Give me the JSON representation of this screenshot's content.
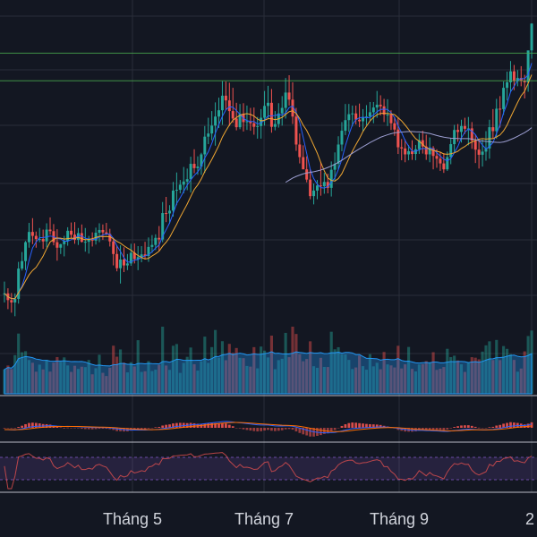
{
  "chart_data": {
    "type": "candlestick",
    "x_ticks": [
      "Tháng 5",
      "Tháng 7",
      "Tháng 9",
      "2"
    ],
    "colors": {
      "background": "#131722",
      "grid": "#2a2e39",
      "up": "#26a69a",
      "down": "#ef5350",
      "ma_fast": "#2962ff",
      "ma_mid": "#f0a732",
      "ma_slow": "#9c9ed1",
      "volume_ma": "#2196f3",
      "macd_line": "#2962ff",
      "signal_line": "#ff6d00",
      "rsi_line": "#7e57c2",
      "rsi_band": "#7e57c2",
      "separator": "#d1d4dc",
      "hline": "#4caf50"
    },
    "price_range": [
      0,
      100
    ],
    "horizontal_levels": [
      86.5,
      79.5
    ],
    "candles": {
      "open": [
        25.5,
        25.5,
        23.8,
        23.2,
        24.1,
        31.8,
        33.7,
        38.5,
        41.1,
        40.1,
        39.3,
        39.3,
        38.7,
        41.7,
        41.3,
        38.5,
        37.1,
        38.0,
        38.8,
        41.4,
        40.4,
        39.1,
        40.8,
        38.6,
        38.6,
        39.3,
        38.9,
        40.9,
        41.6,
        41.0,
        40.6,
        38.7,
        35.5,
        31.9,
        34.1,
        32.6,
        33.1,
        35.8,
        34.2,
        34.7,
        35.4,
        35.0,
        37.3,
        37.8,
        39.6,
        39.2,
        45.9,
        45.8,
        46.5,
        51.6,
        51.8,
        53.1,
        53.9,
        54.5,
        58.4,
        57.3,
        57.7,
        60.8,
        65.3,
        66.1,
        68.1,
        70.4,
        72.0,
        75.7,
        74.5,
        71.8,
        69.9,
        67.7,
        71.1,
        69.0,
        69.2,
        68.7,
        67.8,
        68.0,
        70.1,
        73.1,
        73.9,
        67.8,
        68.5,
        71.2,
        72.6,
        76.5,
        74.7,
        70.4,
        63.3,
        60.1,
        57.0,
        54.4,
        50.2,
        51.6,
        52.9,
        52.7,
        53.8,
        52.3,
        56.9,
        58.4,
        63.3,
        66.8,
        69.5,
        71.0,
        71.2,
        69.6,
        69.2,
        70.2,
        70.4,
        71.5,
        72.7,
        73.4,
        73.0,
        70.9,
        70.9,
        68.7,
        67.1,
        62.6,
        62.3,
        60.8,
        61.6,
        60.9,
        62.1,
        64.4,
        62.8,
        60.8,
        62.4,
        60.4,
        59.7,
        58.5,
        57.0,
        60.1,
        63.4,
        67.0,
        66.5,
        68.0,
        67.3,
        67.4,
        64.3,
        62.0,
        60.7,
        61.5,
        62.3,
        67.7,
        66.7,
        72.4,
        72.3,
        77.7,
        79.1,
        81.9,
        79.4,
        80.2,
        79.5,
        79.1,
        87.2
      ],
      "high": [
        28.5,
        26.8,
        25.6,
        25.5,
        33.5,
        36.0,
        38.8,
        43.4,
        44.6,
        41.2,
        42.1,
        41.7,
        43.3,
        44.8,
        43.1,
        41.8,
        38.1,
        40.1,
        42.3,
        43.5,
        43.6,
        42.1,
        43.0,
        42.1,
        40.1,
        41.0,
        42.2,
        43.3,
        43.0,
        43.4,
        41.9,
        39.6,
        37.7,
        37.7,
        37.2,
        35.5,
        38.1,
        38.2,
        37.5,
        37.5,
        38.6,
        39.7,
        40.3,
        40.5,
        42.6,
        48.7,
        50.0,
        47.9,
        53.8,
        56.2,
        54.3,
        57.6,
        57.2,
        60.2,
        62.1,
        60.3,
        61.2,
        68.0,
        70.1,
        71.8,
        74.0,
        75.2,
        79.4,
        79.3,
        79.0,
        77.7,
        73.9,
        73.6,
        73.8,
        73.2,
        72.6,
        72.7,
        70.3,
        72.3,
        76.9,
        78.2,
        77.4,
        71.8,
        73.8,
        75.6,
        80.2,
        80.9,
        79.1,
        72.6,
        66.1,
        63.1,
        60.3,
        57.0,
        53.4,
        54.3,
        58.9,
        56.1,
        55.9,
        59.0,
        61.3,
        65.4,
        69.0,
        73.6,
        73.6,
        73.2,
        73.2,
        73.7,
        72.3,
        73.3,
        74.1,
        74.1,
        76.9,
        75.8,
        74.9,
        74.8,
        72.0,
        70.3,
        70.1,
        64.7,
        64.6,
        63.2,
        64.4,
        63.2,
        66.1,
        66.8,
        65.8,
        65.1,
        62.9,
        62.1,
        61.3,
        61.1,
        61.5,
        65.0,
        68.3,
        68.5,
        69.6,
        70.1,
        70.3,
        69.0,
        65.8,
        64.6,
        64.6,
        66.7,
        69.6,
        72.3,
        74.9,
        75.6,
        79.3,
        81.8,
        84.5,
        83.5,
        82.2,
        83.2,
        81.0,
        86.3,
        94.1
      ],
      "low": [
        23.2,
        21.5,
        20.6,
        19.7,
        22.9,
        31.3,
        31.4,
        37.1,
        38.0,
        37.1,
        38.5,
        36.8,
        37.2,
        40.4,
        37.7,
        33.8,
        35.5,
        34.9,
        37.6,
        39.6,
        38.1,
        37.8,
        38.4,
        36.1,
        35.6,
        37.4,
        37.9,
        38.5,
        39.1,
        40.3,
        37.4,
        32.6,
        31.1,
        28.0,
        30.9,
        31.4,
        32.5,
        33.1,
        31.4,
        33.4,
        34.1,
        33.5,
        35.8,
        36.5,
        36.2,
        38.5,
        43.6,
        43.2,
        45.0,
        47.9,
        50.9,
        50.9,
        51.7,
        51.1,
        56.0,
        55.6,
        55.6,
        56.1,
        63.4,
        64.4,
        63.0,
        67.5,
        68.3,
        72.1,
        68.0,
        68.8,
        66.9,
        67.2,
        66.6,
        67.0,
        66.8,
        65.8,
        64.8,
        64.8,
        68.1,
        69.9,
        66.3,
        66.9,
        67.6,
        68.1,
        69.9,
        73.2,
        68.5,
        61.7,
        58.5,
        57.5,
        53.7,
        49.4,
        48.1,
        49.4,
        50.3,
        50.8,
        50.9,
        50.1,
        54.2,
        56.9,
        61.6,
        65.7,
        66.5,
        67.9,
        68.4,
        67.7,
        66.7,
        68.2,
        69.4,
        68.7,
        70.1,
        70.7,
        69.0,
        68.0,
        67.0,
        65.5,
        60.9,
        59.3,
        58.8,
        59.3,
        59.4,
        59.3,
        60.9,
        61.0,
        59.4,
        58.8,
        57.0,
        57.4,
        56.6,
        56.1,
        56.6,
        58.3,
        61.4,
        64.0,
        63.8,
        66.0,
        63.1,
        62.2,
        58.6,
        57.2,
        57.7,
        59.2,
        59.7,
        64.9,
        64.8,
        67.6,
        70.8,
        74.5,
        76.6,
        77.1,
        78.1,
        78.1,
        75.0,
        76.7,
        85.1
      ],
      "close": [
        25.5,
        23.8,
        23.2,
        24.1,
        31.8,
        33.7,
        38.5,
        41.1,
        40.1,
        39.3,
        39.3,
        38.7,
        41.7,
        41.3,
        38.5,
        37.1,
        38.0,
        38.8,
        41.4,
        40.4,
        39.1,
        40.8,
        38.6,
        38.6,
        39.3,
        38.9,
        40.9,
        41.6,
        41.0,
        40.6,
        38.7,
        35.5,
        31.9,
        34.1,
        32.6,
        33.1,
        35.8,
        34.2,
        34.7,
        35.4,
        35.0,
        37.3,
        37.8,
        39.6,
        39.2,
        45.9,
        45.8,
        46.5,
        51.6,
        51.8,
        53.1,
        53.9,
        54.5,
        58.4,
        57.3,
        57.7,
        60.8,
        65.3,
        66.1,
        68.1,
        70.4,
        72.0,
        75.7,
        74.5,
        71.8,
        69.9,
        67.7,
        71.1,
        69.0,
        69.2,
        68.7,
        67.8,
        68.0,
        70.1,
        73.1,
        73.9,
        67.8,
        68.5,
        71.2,
        72.6,
        76.5,
        74.7,
        70.4,
        63.3,
        60.1,
        57.0,
        54.4,
        50.2,
        51.6,
        52.9,
        52.7,
        53.8,
        52.3,
        56.9,
        58.4,
        63.3,
        66.8,
        69.5,
        71.0,
        71.2,
        69.6,
        69.2,
        70.2,
        70.4,
        71.5,
        72.7,
        73.4,
        73.0,
        70.9,
        70.9,
        68.7,
        67.1,
        62.6,
        62.3,
        60.8,
        61.6,
        60.9,
        62.1,
        64.4,
        62.8,
        60.8,
        62.4,
        60.4,
        59.7,
        58.5,
        57.0,
        60.1,
        63.4,
        67.0,
        66.5,
        68.0,
        67.3,
        67.4,
        64.3,
        62.0,
        60.7,
        61.5,
        62.3,
        67.7,
        66.7,
        72.4,
        72.3,
        77.7,
        79.1,
        81.9,
        79.4,
        80.2,
        79.5,
        79.1,
        87.2,
        94.0
      ]
    }
  }
}
